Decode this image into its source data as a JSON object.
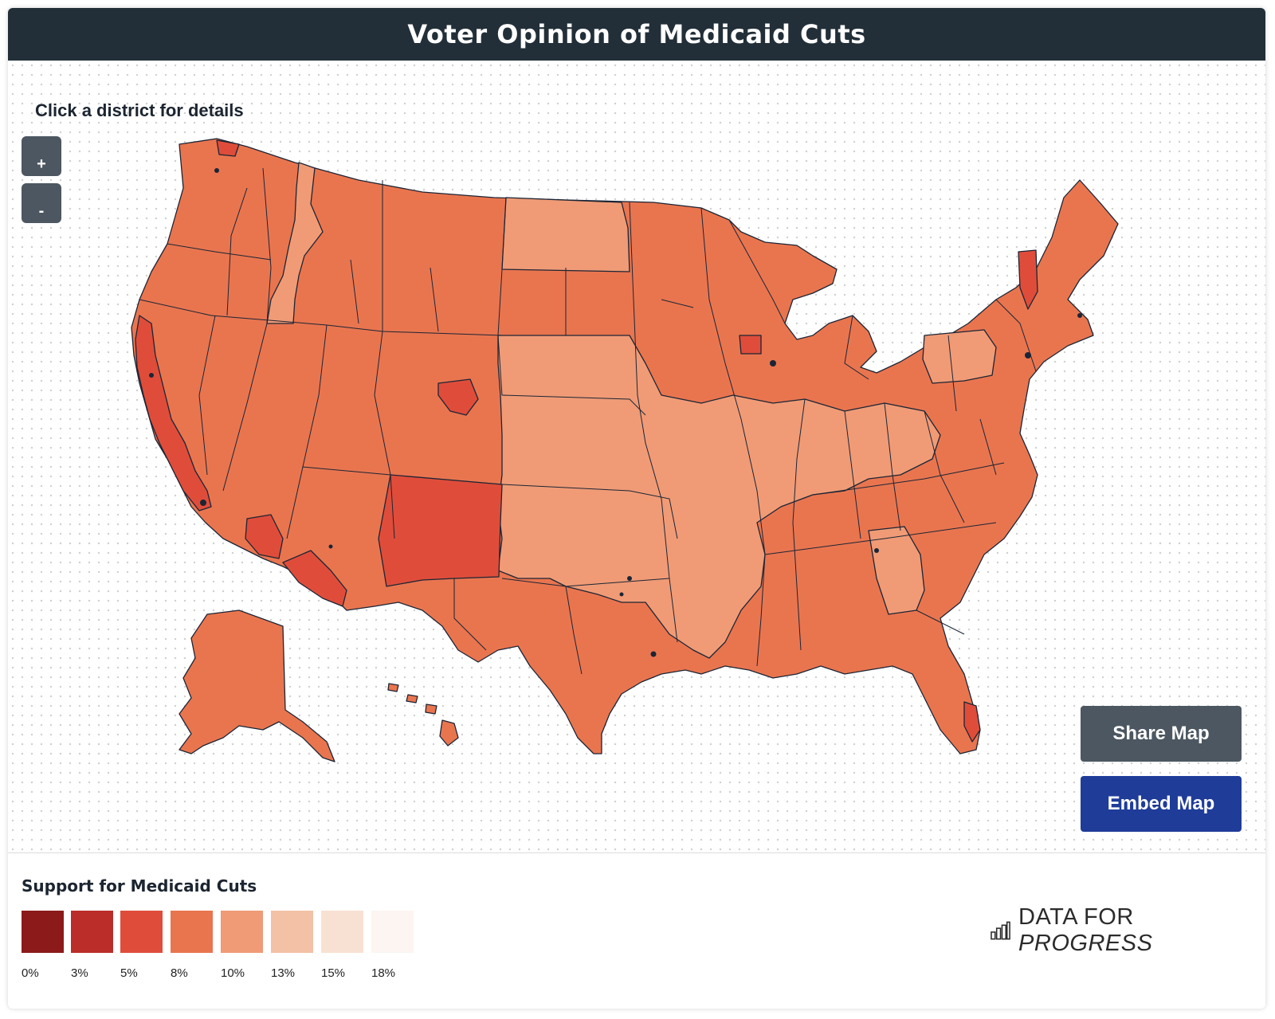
{
  "header": {
    "title": "Voter Opinion of Medicaid Cuts"
  },
  "map": {
    "hint": "Click a district for details",
    "zoom_in_label": "+",
    "zoom_out_label": "-",
    "share_label": "Share Map",
    "embed_label": "Embed Map",
    "fill_colors": {
      "base": "#e9754f",
      "light": "#f09b76",
      "dark": "#df4d3a",
      "border": "#1b2535"
    }
  },
  "legend": {
    "title": "Support for Medicaid Cuts",
    "bins": [
      {
        "label": "0%",
        "color": "#8c1a1a"
      },
      {
        "label": "3%",
        "color": "#bb2d28"
      },
      {
        "label": "5%",
        "color": "#df4d3a"
      },
      {
        "label": "8%",
        "color": "#e9754f"
      },
      {
        "label": "10%",
        "color": "#f09b76"
      },
      {
        "label": "13%",
        "color": "#f3c1a5"
      },
      {
        "label": "15%",
        "color": "#f8e1d3"
      },
      {
        "label": "18%",
        "color": "#fcf5f1"
      }
    ]
  },
  "brand": {
    "text_a": "DATA FOR ",
    "text_b": "PROGRESS",
    "icon": "bar-chart-icon"
  }
}
